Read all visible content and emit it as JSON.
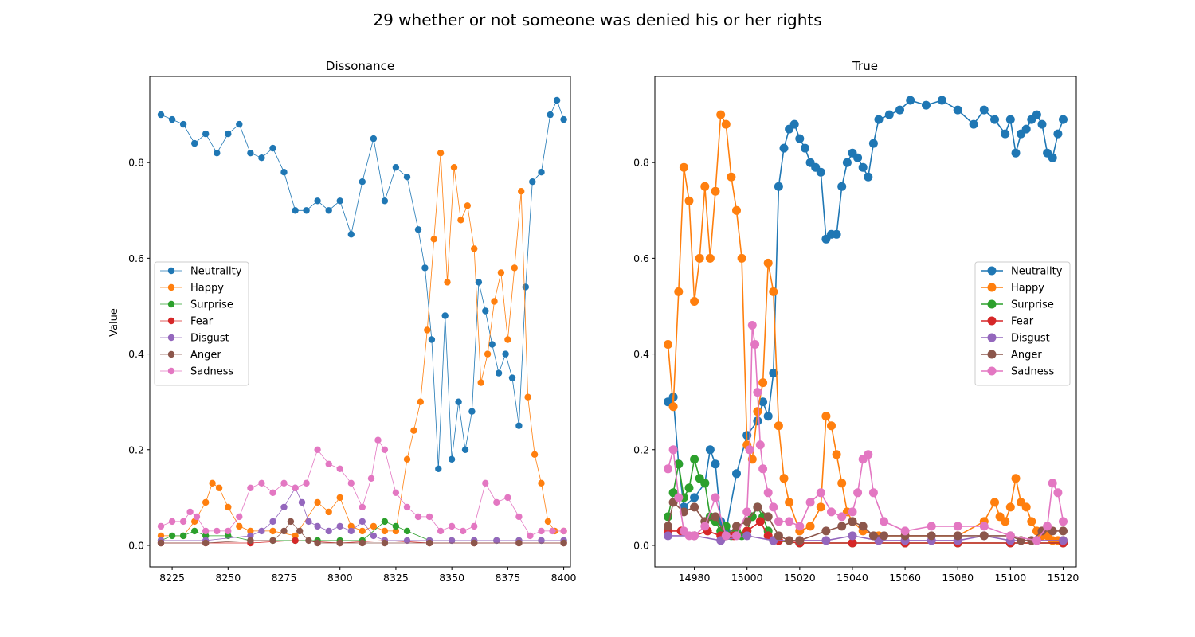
{
  "figure_title": "29 whether or not someone was denied his or her rights",
  "legend_entries": [
    "Neutrality",
    "Happy",
    "Surprise",
    "Fear",
    "Disgust",
    "Anger",
    "Sadness"
  ],
  "colors": {
    "Neutrality": "#1f77b4",
    "Happy": "#ff7f0e",
    "Surprise": "#2ca02c",
    "Fear": "#d62728",
    "Disgust": "#9467bd",
    "Anger": "#8c564b",
    "Sadness": "#e377c2"
  },
  "chart_data": [
    {
      "type": "line",
      "title": "Dissonance",
      "xlabel": "",
      "ylabel": "Value",
      "xlim": [
        8215,
        8403
      ],
      "ylim": [
        -0.045,
        0.98
      ],
      "xticks": [
        8225,
        8250,
        8275,
        8300,
        8325,
        8350,
        8375,
        8400
      ],
      "yticks": [
        0.0,
        0.2,
        0.4,
        0.6,
        0.8
      ],
      "grid": false,
      "legend_position": "center-left",
      "markers": "small-circle",
      "series": [
        {
          "name": "Neutrality",
          "x": [
            8220,
            8225,
            8230,
            8235,
            8240,
            8245,
            8250,
            8255,
            8260,
            8265,
            8270,
            8275,
            8280,
            8285,
            8290,
            8295,
            8300,
            8305,
            8310,
            8315,
            8320,
            8325,
            8330,
            8335,
            8338,
            8341,
            8344,
            8347,
            8350,
            8353,
            8356,
            8359,
            8362,
            8365,
            8368,
            8371,
            8374,
            8377,
            8380,
            8383,
            8386,
            8390,
            8394,
            8397,
            8400
          ],
          "y": [
            0.9,
            0.89,
            0.88,
            0.84,
            0.86,
            0.82,
            0.86,
            0.88,
            0.82,
            0.81,
            0.83,
            0.78,
            0.7,
            0.7,
            0.72,
            0.7,
            0.72,
            0.65,
            0.76,
            0.85,
            0.72,
            0.79,
            0.77,
            0.66,
            0.58,
            0.43,
            0.16,
            0.48,
            0.18,
            0.3,
            0.2,
            0.28,
            0.55,
            0.49,
            0.42,
            0.36,
            0.4,
            0.35,
            0.25,
            0.54,
            0.76,
            0.78,
            0.9,
            0.93,
            0.89
          ]
        },
        {
          "name": "Happy",
          "x": [
            8220,
            8230,
            8235,
            8240,
            8243,
            8246,
            8250,
            8255,
            8260,
            8270,
            8280,
            8290,
            8295,
            8300,
            8305,
            8310,
            8315,
            8320,
            8325,
            8330,
            8333,
            8336,
            8339,
            8342,
            8345,
            8348,
            8351,
            8354,
            8357,
            8360,
            8363,
            8366,
            8369,
            8372,
            8375,
            8378,
            8381,
            8384,
            8387,
            8390,
            8393,
            8396,
            8400
          ],
          "y": [
            0.02,
            0.02,
            0.05,
            0.09,
            0.13,
            0.12,
            0.08,
            0.04,
            0.03,
            0.03,
            0.02,
            0.09,
            0.07,
            0.1,
            0.04,
            0.03,
            0.04,
            0.03,
            0.03,
            0.18,
            0.24,
            0.3,
            0.45,
            0.64,
            0.82,
            0.55,
            0.79,
            0.68,
            0.71,
            0.62,
            0.34,
            0.4,
            0.51,
            0.57,
            0.43,
            0.58,
            0.74,
            0.31,
            0.19,
            0.13,
            0.05,
            0.03,
            0.03
          ]
        },
        {
          "name": "Surprise",
          "x": [
            8220,
            8225,
            8230,
            8235,
            8240,
            8250,
            8260,
            8270,
            8280,
            8290,
            8300,
            8310,
            8320,
            8325,
            8330,
            8340,
            8350,
            8360,
            8370,
            8380,
            8390,
            8400
          ],
          "y": [
            0.01,
            0.02,
            0.02,
            0.03,
            0.02,
            0.02,
            0.01,
            0.01,
            0.01,
            0.01,
            0.01,
            0.01,
            0.05,
            0.04,
            0.03,
            0.01,
            0.01,
            0.01,
            0.01,
            0.01,
            0.01,
            0.01
          ]
        },
        {
          "name": "Fear",
          "x": [
            8220,
            8240,
            8260,
            8280,
            8300,
            8320,
            8340,
            8360,
            8380,
            8400
          ],
          "y": [
            0.005,
            0.005,
            0.005,
            0.01,
            0.005,
            0.01,
            0.005,
            0.005,
            0.005,
            0.005
          ]
        },
        {
          "name": "Disgust",
          "x": [
            8220,
            8240,
            8260,
            8265,
            8270,
            8275,
            8280,
            8283,
            8286,
            8290,
            8295,
            8300,
            8305,
            8310,
            8315,
            8320,
            8330,
            8340,
            8350,
            8360,
            8370,
            8380,
            8390,
            8400
          ],
          "y": [
            0.01,
            0.01,
            0.02,
            0.03,
            0.05,
            0.08,
            0.12,
            0.09,
            0.05,
            0.04,
            0.03,
            0.04,
            0.03,
            0.05,
            0.02,
            0.01,
            0.01,
            0.01,
            0.01,
            0.01,
            0.01,
            0.01,
            0.01,
            0.01
          ]
        },
        {
          "name": "Anger",
          "x": [
            8220,
            8240,
            8260,
            8270,
            8275,
            8278,
            8282,
            8286,
            8290,
            8300,
            8310,
            8320,
            8340,
            8360,
            8380,
            8400
          ],
          "y": [
            0.005,
            0.005,
            0.01,
            0.01,
            0.03,
            0.05,
            0.03,
            0.01,
            0.005,
            0.005,
            0.005,
            0.005,
            0.005,
            0.005,
            0.005,
            0.005
          ]
        },
        {
          "name": "Sadness",
          "x": [
            8220,
            8225,
            8230,
            8233,
            8236,
            8240,
            8245,
            8250,
            8255,
            8260,
            8265,
            8270,
            8275,
            8280,
            8285,
            8290,
            8295,
            8300,
            8305,
            8310,
            8314,
            8317,
            8320,
            8325,
            8330,
            8335,
            8340,
            8345,
            8350,
            8355,
            8360,
            8365,
            8370,
            8375,
            8380,
            8385,
            8390,
            8395,
            8400
          ],
          "y": [
            0.04,
            0.05,
            0.05,
            0.07,
            0.06,
            0.03,
            0.03,
            0.03,
            0.06,
            0.12,
            0.13,
            0.11,
            0.13,
            0.12,
            0.13,
            0.2,
            0.17,
            0.16,
            0.13,
            0.08,
            0.14,
            0.22,
            0.2,
            0.11,
            0.08,
            0.06,
            0.06,
            0.03,
            0.04,
            0.03,
            0.04,
            0.13,
            0.09,
            0.1,
            0.06,
            0.02,
            0.03,
            0.03,
            0.03
          ]
        }
      ]
    },
    {
      "type": "line",
      "title": "True",
      "xlabel": "",
      "ylabel": "",
      "xlim": [
        14965,
        15125
      ],
      "ylim": [
        -0.045,
        0.98
      ],
      "xticks": [
        14980,
        15000,
        15020,
        15040,
        15060,
        15080,
        15100,
        15120
      ],
      "yticks": [
        0.0,
        0.2,
        0.4,
        0.6,
        0.8
      ],
      "grid": false,
      "legend_position": "center-right",
      "markers": "large-circle",
      "series": [
        {
          "name": "Neutrality",
          "x": [
            14970,
            14972,
            14974,
            14976,
            14980,
            14984,
            14986,
            14988,
            14990,
            14992,
            14996,
            15000,
            15004,
            15006,
            15008,
            15010,
            15012,
            15014,
            15016,
            15018,
            15020,
            15022,
            15024,
            15026,
            15028,
            15030,
            15032,
            15034,
            15036,
            15038,
            15040,
            15042,
            15044,
            15046,
            15048,
            15050,
            15054,
            15058,
            15062,
            15068,
            15074,
            15080,
            15086,
            15090,
            15094,
            15098,
            15100,
            15102,
            15104,
            15106,
            15108,
            15110,
            15112,
            15114,
            15116,
            15118,
            15120
          ],
          "y": [
            0.3,
            0.31,
            0.17,
            0.08,
            0.1,
            0.13,
            0.2,
            0.17,
            0.05,
            0.03,
            0.15,
            0.23,
            0.26,
            0.3,
            0.27,
            0.36,
            0.75,
            0.83,
            0.87,
            0.88,
            0.85,
            0.83,
            0.8,
            0.79,
            0.78,
            0.64,
            0.65,
            0.65,
            0.75,
            0.8,
            0.82,
            0.81,
            0.79,
            0.77,
            0.84,
            0.89,
            0.9,
            0.91,
            0.93,
            0.92,
            0.93,
            0.91,
            0.88,
            0.91,
            0.89,
            0.86,
            0.89,
            0.82,
            0.86,
            0.87,
            0.89,
            0.9,
            0.88,
            0.82,
            0.81,
            0.86,
            0.89
          ]
        },
        {
          "name": "Happy",
          "x": [
            14970,
            14972,
            14974,
            14976,
            14978,
            14980,
            14982,
            14984,
            14986,
            14988,
            14990,
            14992,
            14994,
            14996,
            14998,
            15000,
            15002,
            15004,
            15006,
            15008,
            15010,
            15012,
            15014,
            15016,
            15020,
            15024,
            15028,
            15030,
            15032,
            15034,
            15036,
            15038,
            15040,
            15044,
            15050,
            15060,
            15080,
            15090,
            15094,
            15096,
            15098,
            15100,
            15102,
            15104,
            15106,
            15108,
            15110,
            15112,
            15114,
            15116,
            15118,
            15120
          ],
          "y": [
            0.42,
            0.29,
            0.53,
            0.79,
            0.72,
            0.51,
            0.6,
            0.75,
            0.6,
            0.74,
            0.9,
            0.88,
            0.77,
            0.7,
            0.6,
            0.21,
            0.18,
            0.28,
            0.34,
            0.59,
            0.53,
            0.25,
            0.14,
            0.09,
            0.03,
            0.04,
            0.08,
            0.27,
            0.25,
            0.19,
            0.13,
            0.07,
            0.05,
            0.03,
            0.02,
            0.02,
            0.02,
            0.05,
            0.09,
            0.06,
            0.05,
            0.08,
            0.14,
            0.09,
            0.08,
            0.05,
            0.03,
            0.02,
            0.02,
            0.01,
            0.01,
            0.01
          ]
        },
        {
          "name": "Surprise",
          "x": [
            14970,
            14972,
            14974,
            14976,
            14978,
            14980,
            14982,
            14984,
            14986,
            14988,
            14990,
            14992,
            14994,
            14996,
            14998,
            15000,
            15002,
            15004,
            15006,
            15008,
            15010,
            15020,
            15040,
            15060,
            15080,
            15100,
            15120
          ],
          "y": [
            0.06,
            0.11,
            0.17,
            0.1,
            0.12,
            0.18,
            0.14,
            0.13,
            0.06,
            0.05,
            0.03,
            0.04,
            0.02,
            0.03,
            0.02,
            0.03,
            0.06,
            0.08,
            0.06,
            0.03,
            0.01,
            0.005,
            0.005,
            0.005,
            0.005,
            0.005,
            0.005
          ]
        },
        {
          "name": "Fear",
          "x": [
            14970,
            14975,
            14980,
            14985,
            14990,
            14995,
            15000,
            15005,
            15008,
            15012,
            15020,
            15040,
            15060,
            15080,
            15100,
            15120
          ],
          "y": [
            0.03,
            0.03,
            0.02,
            0.03,
            0.02,
            0.02,
            0.03,
            0.05,
            0.02,
            0.01,
            0.005,
            0.005,
            0.005,
            0.005,
            0.005,
            0.005
          ]
        },
        {
          "name": "Disgust",
          "x": [
            14970,
            14980,
            14990,
            15000,
            15010,
            15020,
            15030,
            15040,
            15050,
            15060,
            15070,
            15080,
            15090,
            15100,
            15110,
            15120
          ],
          "y": [
            0.02,
            0.02,
            0.01,
            0.02,
            0.01,
            0.01,
            0.01,
            0.02,
            0.01,
            0.01,
            0.01,
            0.01,
            0.02,
            0.01,
            0.01,
            0.01
          ]
        },
        {
          "name": "Anger",
          "x": [
            14970,
            14972,
            14976,
            14980,
            14984,
            14988,
            14992,
            14996,
            15000,
            15004,
            15008,
            15012,
            15016,
            15020,
            15030,
            15036,
            15040,
            15044,
            15048,
            15052,
            15060,
            15070,
            15080,
            15090,
            15100,
            15104,
            15108,
            15112,
            15116,
            15120
          ],
          "y": [
            0.04,
            0.09,
            0.07,
            0.08,
            0.05,
            0.06,
            0.02,
            0.04,
            0.05,
            0.08,
            0.06,
            0.02,
            0.01,
            0.01,
            0.03,
            0.04,
            0.05,
            0.04,
            0.02,
            0.02,
            0.02,
            0.02,
            0.02,
            0.02,
            0.02,
            0.01,
            0.01,
            0.03,
            0.03,
            0.03
          ]
        },
        {
          "name": "Sadness",
          "x": [
            14970,
            14972,
            14974,
            14976,
            14978,
            14980,
            14984,
            14988,
            14992,
            14996,
            15000,
            15001,
            15002,
            15003,
            15004,
            15005,
            15006,
            15008,
            15010,
            15012,
            15016,
            15020,
            15024,
            15028,
            15032,
            15036,
            15040,
            15042,
            15044,
            15046,
            15048,
            15052,
            15060,
            15070,
            15080,
            15090,
            15100,
            15110,
            15114,
            15116,
            15118,
            15120
          ],
          "y": [
            0.16,
            0.2,
            0.1,
            0.03,
            0.02,
            0.02,
            0.04,
            0.1,
            0.02,
            0.02,
            0.07,
            0.2,
            0.46,
            0.42,
            0.32,
            0.21,
            0.16,
            0.11,
            0.08,
            0.05,
            0.05,
            0.04,
            0.09,
            0.11,
            0.07,
            0.06,
            0.07,
            0.11,
            0.18,
            0.19,
            0.11,
            0.05,
            0.03,
            0.04,
            0.04,
            0.04,
            0.02,
            0.01,
            0.04,
            0.13,
            0.11,
            0.05
          ]
        }
      ]
    }
  ]
}
